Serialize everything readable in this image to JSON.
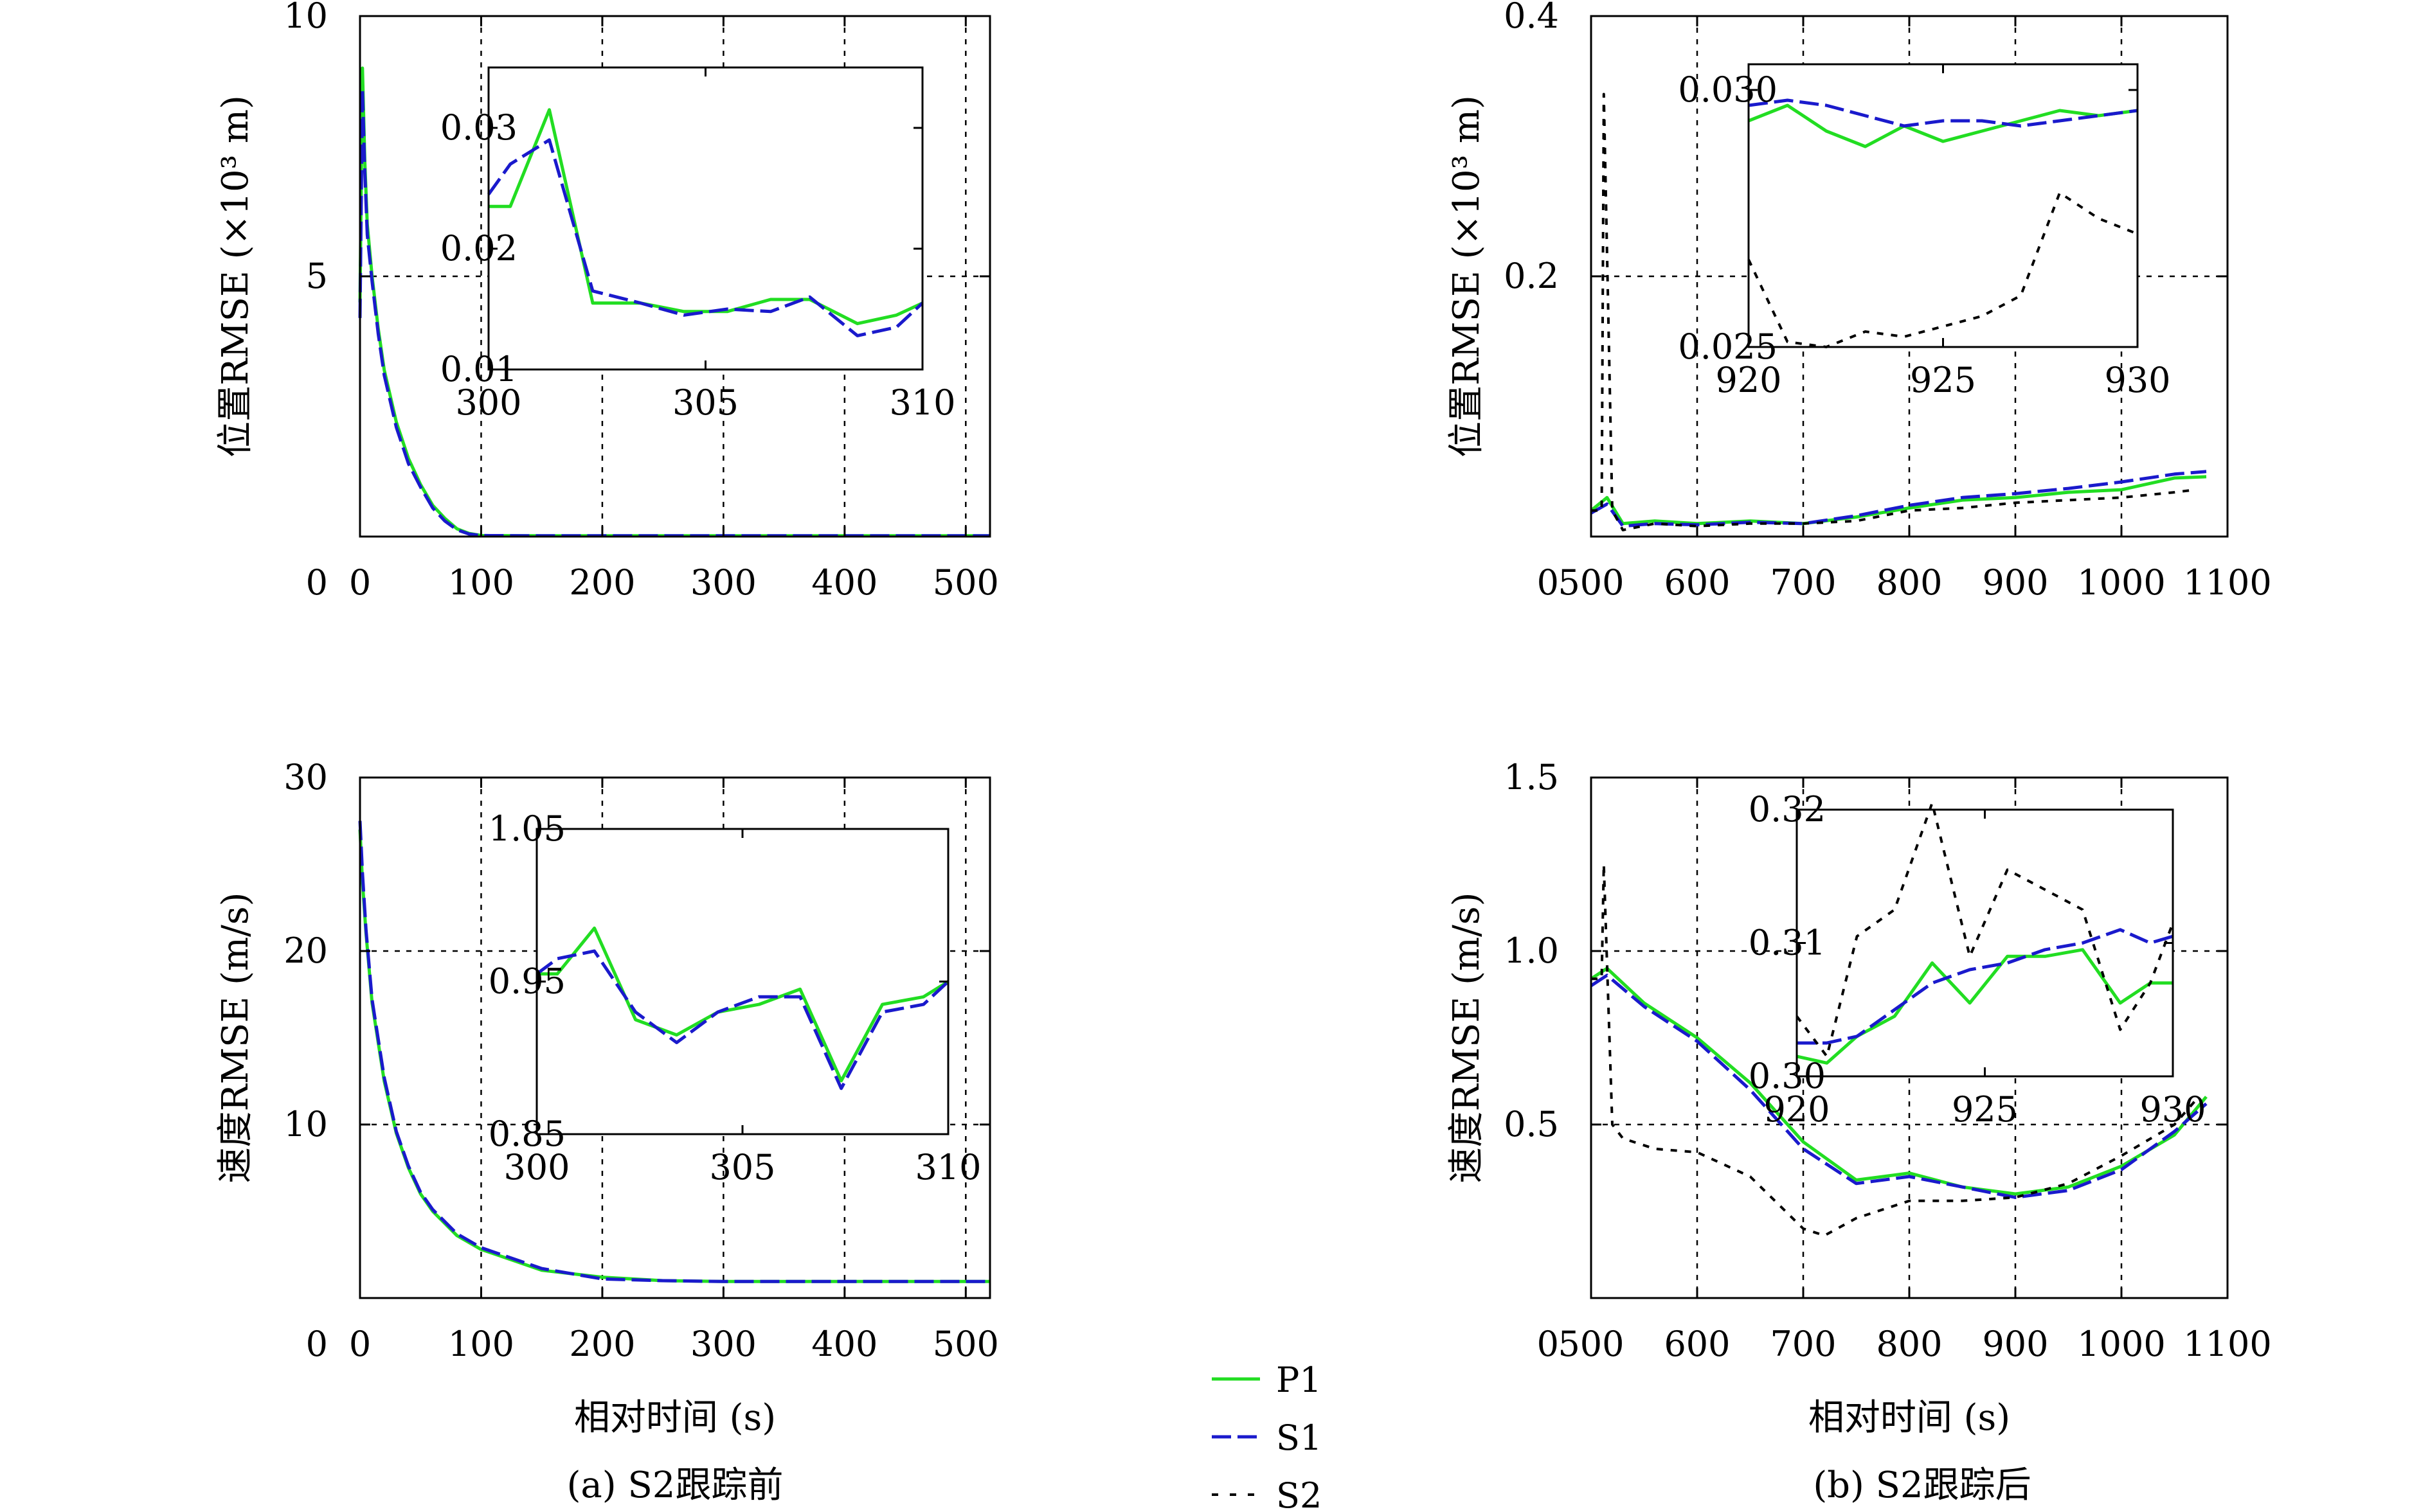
{
  "colors": {
    "P1": "#22dd22",
    "S1": "#1a1acc",
    "S2": "#000000"
  },
  "legend": [
    {
      "name": "P1",
      "style": "solid"
    },
    {
      "name": "S1",
      "style": "long-dash"
    },
    {
      "name": "S2",
      "style": "short-dash"
    }
  ],
  "captions": {
    "a": "(a) S2跟踪前",
    "b": "(b) S2跟踪后"
  },
  "chart_data": [
    {
      "id": "a_pos",
      "type": "line",
      "ylabel": "位置RMSE (×10³ m)",
      "xlabel": "",
      "xlim": [
        0,
        520
      ],
      "ylim": [
        0,
        10
      ],
      "xticks": [
        "0",
        "100",
        "200",
        "300",
        "400",
        "500"
      ],
      "yticks": [
        "0",
        "5",
        "10"
      ],
      "grid": true,
      "series": [
        {
          "name": "P1",
          "x": [
            0,
            2,
            4,
            6,
            10,
            15,
            20,
            30,
            40,
            50,
            60,
            70,
            80,
            90,
            100,
            150,
            200,
            300,
            400,
            520
          ],
          "y": [
            4.5,
            9.0,
            7.2,
            6.0,
            5.0,
            4.0,
            3.2,
            2.2,
            1.5,
            1.0,
            0.6,
            0.35,
            0.15,
            0.06,
            0.02,
            0.015,
            0.015,
            0.015,
            0.015,
            0.015
          ]
        },
        {
          "name": "S1",
          "x": [
            0,
            2,
            4,
            6,
            10,
            15,
            20,
            30,
            40,
            50,
            60,
            70,
            80,
            90,
            100,
            150,
            200,
            300,
            400,
            520
          ],
          "y": [
            4.2,
            8.6,
            7.0,
            5.8,
            4.9,
            3.9,
            3.1,
            2.1,
            1.4,
            0.95,
            0.55,
            0.3,
            0.13,
            0.05,
            0.02,
            0.015,
            0.015,
            0.015,
            0.015,
            0.015
          ]
        }
      ],
      "inset": {
        "xlim": [
          300,
          310
        ],
        "ylim": [
          0.01,
          0.035
        ],
        "xticks": [
          "300",
          "305",
          "310"
        ],
        "yticks": [
          "0.01",
          "0.02",
          "0.03"
        ],
        "series": [
          {
            "name": "P1",
            "x": [
              300,
              300.5,
              301.4,
              302.4,
              303.5,
              304.5,
              305.5,
              306.5,
              307.4,
              308.5,
              309.4,
              310
            ],
            "y": [
              0.0235,
              0.0235,
              0.0315,
              0.0155,
              0.0155,
              0.0148,
              0.0148,
              0.0158,
              0.0158,
              0.0138,
              0.0145,
              0.0155
            ]
          },
          {
            "name": "S1",
            "x": [
              300,
              300.5,
              301.4,
              302.4,
              303.5,
              304.5,
              305.5,
              306.5,
              307.4,
              308.5,
              309.4,
              310
            ],
            "y": [
              0.0245,
              0.027,
              0.029,
              0.0165,
              0.0155,
              0.0145,
              0.015,
              0.0148,
              0.016,
              0.0128,
              0.0135,
              0.0155
            ]
          }
        ]
      }
    },
    {
      "id": "a_vel",
      "type": "line",
      "ylabel": "速度RMSE (m/s)",
      "xlabel": "相对时间 (s)",
      "xlim": [
        0,
        520
      ],
      "ylim": [
        0,
        30
      ],
      "xticks": [
        "0",
        "100",
        "200",
        "300",
        "400",
        "500"
      ],
      "yticks": [
        "0",
        "10",
        "20",
        "30"
      ],
      "grid": true,
      "series": [
        {
          "name": "P1",
          "x": [
            0,
            2,
            5,
            10,
            20,
            30,
            40,
            50,
            60,
            80,
            100,
            150,
            200,
            250,
            300,
            400,
            520
          ],
          "y": [
            27,
            24,
            21,
            17,
            12.5,
            9.5,
            7.5,
            6.0,
            5.0,
            3.6,
            2.8,
            1.6,
            1.2,
            1.0,
            0.95,
            0.95,
            0.95
          ]
        },
        {
          "name": "S1",
          "x": [
            0,
            2,
            5,
            10,
            20,
            30,
            40,
            50,
            60,
            80,
            100,
            150,
            200,
            250,
            300,
            400,
            520
          ],
          "y": [
            27.5,
            24.5,
            21.2,
            17.2,
            12.7,
            9.6,
            7.6,
            6.1,
            5.1,
            3.7,
            2.9,
            1.7,
            1.1,
            1.0,
            0.95,
            0.95,
            0.95
          ]
        }
      ],
      "inset": {
        "xlim": [
          300,
          310
        ],
        "ylim": [
          0.85,
          1.05
        ],
        "xticks": [
          "300",
          "305",
          "310"
        ],
        "yticks": [
          "0.85",
          "0.95",
          "1.05"
        ],
        "series": [
          {
            "name": "P1",
            "x": [
              300,
              300.5,
              301.4,
              302.4,
              303.4,
              304.4,
              305.4,
              306.4,
              307.4,
              308.4,
              309.4,
              310
            ],
            "y": [
              0.955,
              0.955,
              0.985,
              0.925,
              0.915,
              0.93,
              0.935,
              0.945,
              0.885,
              0.935,
              0.94,
              0.95
            ]
          },
          {
            "name": "S1",
            "x": [
              300,
              300.5,
              301.4,
              302.4,
              303.4,
              304.4,
              305.4,
              306.4,
              307.4,
              308.4,
              309.4,
              310
            ],
            "y": [
              0.955,
              0.965,
              0.97,
              0.93,
              0.91,
              0.93,
              0.94,
              0.94,
              0.88,
              0.93,
              0.935,
              0.95
            ]
          }
        ]
      }
    },
    {
      "id": "b_pos",
      "type": "line",
      "ylabel": "位置RMSE (×10³ m)",
      "xlabel": "",
      "xlim": [
        500,
        1100
      ],
      "ylim": [
        0,
        0.4
      ],
      "xticks": [
        "500",
        "600",
        "700",
        "800",
        "900",
        "1000",
        "1100"
      ],
      "yticks": [
        "0",
        "0.2",
        "0.4"
      ],
      "grid": true,
      "series": [
        {
          "name": "P1",
          "x": [
            500,
            515,
            530,
            560,
            600,
            650,
            700,
            750,
            800,
            850,
            900,
            950,
            1000,
            1050,
            1080
          ],
          "y": [
            0.02,
            0.03,
            0.01,
            0.012,
            0.01,
            0.012,
            0.01,
            0.015,
            0.022,
            0.028,
            0.03,
            0.034,
            0.036,
            0.045,
            0.046
          ]
        },
        {
          "name": "S1",
          "x": [
            500,
            515,
            530,
            560,
            600,
            650,
            700,
            750,
            800,
            850,
            900,
            950,
            1000,
            1050,
            1080
          ],
          "y": [
            0.018,
            0.025,
            0.008,
            0.01,
            0.009,
            0.011,
            0.01,
            0.016,
            0.024,
            0.03,
            0.033,
            0.037,
            0.042,
            0.048,
            0.05
          ]
        },
        {
          "name": "S2",
          "x": [
            500,
            510,
            512,
            520,
            530,
            560,
            600,
            650,
            700,
            750,
            800,
            850,
            900,
            950,
            1000,
            1050,
            1070
          ],
          "y": [
            0.02,
            0.02,
            0.34,
            0.02,
            0.005,
            0.01,
            0.008,
            0.01,
            0.01,
            0.012,
            0.02,
            0.022,
            0.026,
            0.028,
            0.03,
            0.034,
            0.036
          ]
        }
      ],
      "inset": {
        "xlim": [
          920,
          930
        ],
        "ylim": [
          0.025,
          0.0305
        ],
        "xticks": [
          "920",
          "925",
          "930"
        ],
        "yticks": [
          "0.025",
          "0.030"
        ],
        "series": [
          {
            "name": "P1",
            "x": [
              920,
              921,
              922,
              923,
              924,
              925,
              926,
              927,
              928,
              929,
              930
            ],
            "y": [
              0.0294,
              0.0297,
              0.0292,
              0.0289,
              0.0293,
              0.029,
              0.0292,
              0.0294,
              0.0296,
              0.0295,
              0.0296
            ]
          },
          {
            "name": "S1",
            "x": [
              920,
              921,
              922,
              923,
              924,
              925,
              926,
              927,
              928,
              929,
              930
            ],
            "y": [
              0.0297,
              0.0298,
              0.0297,
              0.0295,
              0.0293,
              0.0294,
              0.0294,
              0.0293,
              0.0294,
              0.0295,
              0.0296
            ]
          },
          {
            "name": "S2",
            "x": [
              920,
              921,
              922,
              923,
              924,
              925,
              926,
              927,
              928,
              929,
              930
            ],
            "y": [
              0.0267,
              0.0251,
              0.025,
              0.0253,
              0.0252,
              0.0254,
              0.0256,
              0.026,
              0.028,
              0.0275,
              0.0272
            ]
          }
        ]
      }
    },
    {
      "id": "b_vel",
      "type": "line",
      "ylabel": "速度RMSE (m/s)",
      "xlabel": "相对时间 (s)",
      "xlim": [
        500,
        1100
      ],
      "ylim": [
        0,
        1.5
      ],
      "xticks": [
        "500",
        "600",
        "700",
        "800",
        "900",
        "1000",
        "1100"
      ],
      "yticks": [
        "0",
        "0.5",
        "1.0",
        "1.5"
      ],
      "grid": true,
      "series": [
        {
          "name": "P1",
          "x": [
            500,
            515,
            550,
            600,
            650,
            700,
            750,
            800,
            850,
            900,
            950,
            1000,
            1050,
            1080
          ],
          "y": [
            0.92,
            0.95,
            0.85,
            0.75,
            0.62,
            0.45,
            0.34,
            0.36,
            0.32,
            0.3,
            0.32,
            0.38,
            0.47,
            0.58
          ]
        },
        {
          "name": "S1",
          "x": [
            500,
            515,
            550,
            600,
            650,
            700,
            750,
            800,
            850,
            900,
            950,
            1000,
            1050,
            1080
          ],
          "y": [
            0.9,
            0.93,
            0.84,
            0.74,
            0.6,
            0.43,
            0.33,
            0.35,
            0.32,
            0.29,
            0.31,
            0.37,
            0.48,
            0.56
          ]
        },
        {
          "name": "S2",
          "x": [
            500,
            510,
            512,
            520,
            530,
            560,
            600,
            650,
            700,
            720,
            750,
            800,
            850,
            900,
            950,
            1000,
            1050,
            1070
          ],
          "y": [
            0.92,
            0.92,
            1.25,
            0.5,
            0.46,
            0.43,
            0.42,
            0.35,
            0.2,
            0.18,
            0.23,
            0.28,
            0.28,
            0.29,
            0.33,
            0.41,
            0.5,
            0.57
          ]
        }
      ],
      "inset": {
        "xlim": [
          920,
          930
        ],
        "ylim": [
          0.3,
          0.32
        ],
        "xticks": [
          "920",
          "925",
          "930"
        ],
        "yticks": [
          "0.30",
          "0.31",
          "0.32"
        ],
        "series": [
          {
            "name": "P1",
            "x": [
              920,
              920.8,
              921.6,
              922.6,
              923.6,
              924.6,
              925.6,
              926.6,
              927.6,
              928.6,
              929.4,
              930
            ],
            "y": [
              0.3015,
              0.301,
              0.303,
              0.3045,
              0.3085,
              0.3055,
              0.309,
              0.309,
              0.3095,
              0.3055,
              0.307,
              0.307
            ]
          },
          {
            "name": "S1",
            "x": [
              920,
              920.8,
              921.6,
              922.6,
              923.6,
              924.6,
              925.6,
              926.6,
              927.6,
              928.6,
              929.4,
              930
            ],
            "y": [
              0.3025,
              0.3025,
              0.303,
              0.305,
              0.307,
              0.308,
              0.3085,
              0.3095,
              0.31,
              0.311,
              0.31,
              0.3105
            ]
          },
          {
            "name": "S2",
            "x": [
              920,
              920.8,
              921.6,
              922.6,
              923.6,
              924.6,
              925.6,
              926.6,
              927.6,
              928.6,
              929.4,
              930
            ],
            "y": [
              0.3045,
              0.3015,
              0.3105,
              0.3125,
              0.3205,
              0.309,
              0.3155,
              0.314,
              0.3125,
              0.3035,
              0.307,
              0.3115
            ]
          }
        ]
      }
    }
  ]
}
